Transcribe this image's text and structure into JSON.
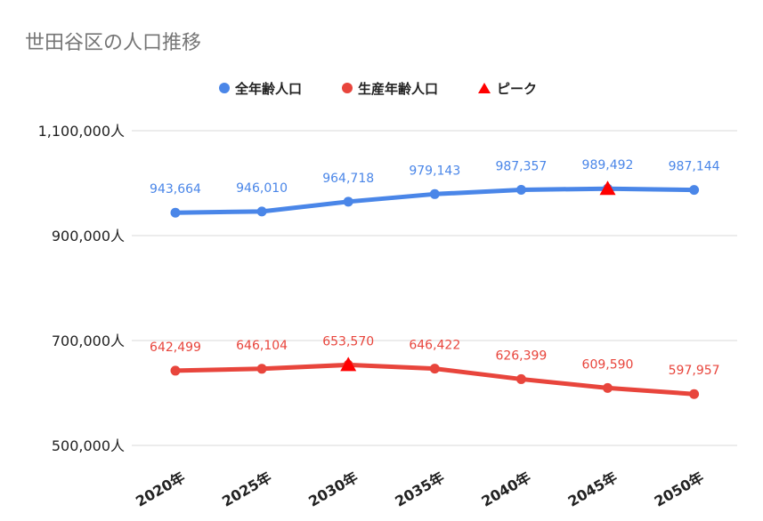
{
  "chart_data": {
    "type": "line",
    "title": "世田谷区の人口推移",
    "categories": [
      "2020年",
      "2025年",
      "2030年",
      "2035年",
      "2040年",
      "2045年",
      "2050年"
    ],
    "series": [
      {
        "name": "全年齢人口",
        "color": "#4a86e8",
        "values": [
          943664,
          946010,
          964718,
          979143,
          987357,
          989492,
          987144
        ],
        "labels": [
          "943,664",
          "946,010",
          "964,718",
          "979,143",
          "987,357",
          "989,492",
          "987,144"
        ]
      },
      {
        "name": "生産年齢人口",
        "color": "#e8453c",
        "values": [
          642499,
          646104,
          653570,
          646422,
          626399,
          609590,
          597957
        ],
        "labels": [
          "642,499",
          "646,104",
          "653,570",
          "646,422",
          "626,399",
          "609,590",
          "597,957"
        ]
      }
    ],
    "peak": {
      "name": "ピーク",
      "color": "#ff0000",
      "points": [
        {
          "series": 0,
          "category": "2045年",
          "value": 989492
        },
        {
          "series": 1,
          "category": "2030年",
          "value": 653570
        }
      ]
    },
    "y_ticks": [
      {
        "value": 500000,
        "label": "500,000人"
      },
      {
        "value": 700000,
        "label": "700,000人"
      },
      {
        "value": 900000,
        "label": "900,000人"
      },
      {
        "value": 1100000,
        "label": "1,100,000人"
      }
    ],
    "ylim": [
      500000,
      1100000
    ],
    "grid": true,
    "legend_position": "top"
  }
}
